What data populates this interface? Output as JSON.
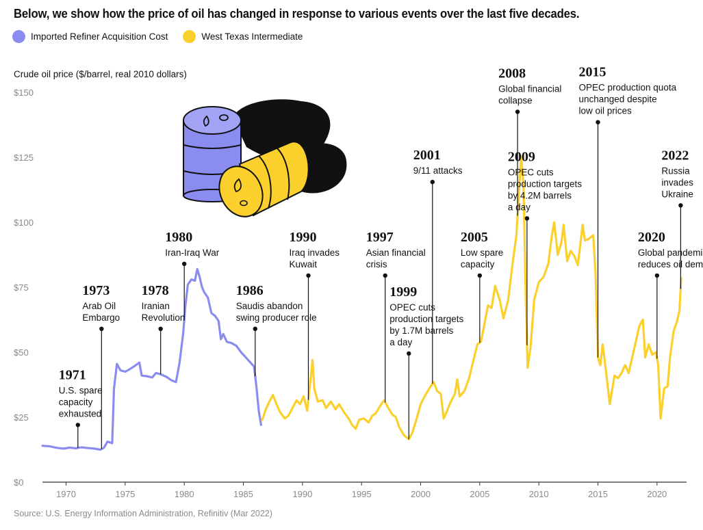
{
  "header": {
    "title": "Below, we show how the price of oil has changed in response to various events over the last five decades.",
    "y_axis_label": "Crude oil price ($/barrel, real 2010 dollars)",
    "source": "Source: U.S. Energy Information Administration, Refinitiv (Mar 2022)"
  },
  "legend": [
    {
      "name": "Imported Refiner Acquisition Cost",
      "color": "#8b8cf0"
    },
    {
      "name": "West Texas Intermediate",
      "color": "#fcd02c"
    }
  ],
  "colors": {
    "ric": "#8b8cf0",
    "wti": "#fcd02c",
    "axis": "#333333",
    "event_line": "#111111",
    "barrel_shadow": "#111111"
  },
  "illustration": {
    "description_icons": [
      "oil-barrel-purple-icon",
      "oil-barrel-yellow-icon"
    ]
  },
  "chart_data": {
    "type": "line",
    "title": "Below, we show how the price of oil has changed in response to various events over the last five decades.",
    "ylabel": "Crude oil price ($/barrel, real 2010 dollars)",
    "xlim": [
      1968,
      2022.5
    ],
    "ylim": [
      0,
      150
    ],
    "x_ticks": [
      1970,
      1975,
      1980,
      1985,
      1990,
      1995,
      2000,
      2005,
      2010,
      2015,
      2020
    ],
    "y_ticks": [
      0,
      25,
      50,
      75,
      100,
      125,
      150
    ],
    "y_tick_labels": [
      "$0",
      "$25",
      "$50",
      "$75",
      "$100",
      "$125",
      "$150"
    ],
    "grid": false,
    "legend_position": "top-left",
    "series": [
      {
        "name": "Imported Refiner Acquisition Cost",
        "color": "#8b8cf0",
        "points": [
          [
            1968.0,
            14.0
          ],
          [
            1968.6,
            13.8
          ],
          [
            1969.2,
            13.2
          ],
          [
            1969.8,
            12.9
          ],
          [
            1970.3,
            13.3
          ],
          [
            1970.8,
            13.0
          ],
          [
            1971.3,
            13.4
          ],
          [
            1971.9,
            13.1
          ],
          [
            1972.4,
            12.9
          ],
          [
            1972.9,
            12.5
          ],
          [
            1973.2,
            13.2
          ],
          [
            1973.5,
            15.6
          ],
          [
            1973.9,
            15.0
          ],
          [
            1974.05,
            36.0
          ],
          [
            1974.3,
            45.5
          ],
          [
            1974.6,
            43.0
          ],
          [
            1975.0,
            42.5
          ],
          [
            1975.4,
            43.5
          ],
          [
            1975.9,
            45.0
          ],
          [
            1976.2,
            46.0
          ],
          [
            1976.4,
            41.0
          ],
          [
            1976.8,
            40.8
          ],
          [
            1977.3,
            40.3
          ],
          [
            1977.6,
            42.0
          ],
          [
            1978.0,
            41.5
          ],
          [
            1978.5,
            40.5
          ],
          [
            1978.9,
            39.2
          ],
          [
            1979.3,
            38.5
          ],
          [
            1979.6,
            46.0
          ],
          [
            1979.9,
            57.0
          ],
          [
            1980.1,
            68.0
          ],
          [
            1980.3,
            76.0
          ],
          [
            1980.6,
            78.0
          ],
          [
            1980.9,
            77.5
          ],
          [
            1981.1,
            82.0
          ],
          [
            1981.3,
            79.0
          ],
          [
            1981.5,
            75.0
          ],
          [
            1981.7,
            73.0
          ],
          [
            1982.0,
            71.0
          ],
          [
            1982.3,
            65.0
          ],
          [
            1982.6,
            64.0
          ],
          [
            1982.9,
            62.0
          ],
          [
            1983.1,
            55.0
          ],
          [
            1983.3,
            57.0
          ],
          [
            1983.6,
            54.0
          ],
          [
            1984.0,
            53.5
          ],
          [
            1984.4,
            52.5
          ],
          [
            1984.8,
            50.0
          ],
          [
            1985.2,
            48.0
          ],
          [
            1985.6,
            46.0
          ],
          [
            1985.9,
            44.5
          ],
          [
            1986.1,
            37.0
          ],
          [
            1986.3,
            27.5
          ],
          [
            1986.5,
            22.0
          ]
        ]
      },
      {
        "name": "West Texas Intermediate",
        "color": "#fcd02c",
        "points": [
          [
            1986.6,
            24.0
          ],
          [
            1986.9,
            28.0
          ],
          [
            1987.2,
            31.0
          ],
          [
            1987.5,
            33.5
          ],
          [
            1987.8,
            30.0
          ],
          [
            1988.1,
            27.0
          ],
          [
            1988.5,
            24.5
          ],
          [
            1988.8,
            25.5
          ],
          [
            1989.1,
            28.0
          ],
          [
            1989.5,
            31.5
          ],
          [
            1989.8,
            30.0
          ],
          [
            1990.1,
            33.0
          ],
          [
            1990.4,
            27.5
          ],
          [
            1990.7,
            40.0
          ],
          [
            1990.85,
            47.0
          ],
          [
            1991.0,
            36.0
          ],
          [
            1991.3,
            31.0
          ],
          [
            1991.7,
            31.5
          ],
          [
            1992.0,
            28.5
          ],
          [
            1992.4,
            31.0
          ],
          [
            1992.8,
            28.0
          ],
          [
            1993.1,
            30.0
          ],
          [
            1993.5,
            27.0
          ],
          [
            1993.9,
            24.5
          ],
          [
            1994.2,
            22.0
          ],
          [
            1994.5,
            20.5
          ],
          [
            1994.8,
            24.0
          ],
          [
            1995.2,
            24.5
          ],
          [
            1995.6,
            23.0
          ],
          [
            1995.9,
            25.5
          ],
          [
            1996.2,
            26.5
          ],
          [
            1996.6,
            29.5
          ],
          [
            1996.9,
            31.5
          ],
          [
            1997.2,
            29.0
          ],
          [
            1997.6,
            26.0
          ],
          [
            1997.9,
            25.0
          ],
          [
            1998.2,
            21.0
          ],
          [
            1998.6,
            18.0
          ],
          [
            1999.0,
            16.5
          ],
          [
            1999.3,
            19.0
          ],
          [
            1999.7,
            25.0
          ],
          [
            2000.0,
            30.0
          ],
          [
            2000.4,
            33.5
          ],
          [
            2000.8,
            36.5
          ],
          [
            2001.1,
            38.5
          ],
          [
            2001.4,
            35.0
          ],
          [
            2001.7,
            34.0
          ],
          [
            2001.95,
            24.5
          ],
          [
            2002.2,
            27.0
          ],
          [
            2002.5,
            30.5
          ],
          [
            2002.9,
            34.0
          ],
          [
            2003.1,
            39.5
          ],
          [
            2003.3,
            33.0
          ],
          [
            2003.7,
            35.0
          ],
          [
            2004.1,
            40.0
          ],
          [
            2004.5,
            47.5
          ],
          [
            2004.8,
            53.0
          ],
          [
            2005.1,
            54.0
          ],
          [
            2005.4,
            61.0
          ],
          [
            2005.7,
            68.0
          ],
          [
            2006.0,
            67.0
          ],
          [
            2006.3,
            75.5
          ],
          [
            2006.7,
            70.0
          ],
          [
            2007.0,
            63.0
          ],
          [
            2007.4,
            70.0
          ],
          [
            2007.8,
            85.0
          ],
          [
            2008.1,
            95.0
          ],
          [
            2008.3,
            110.0
          ],
          [
            2008.5,
            125.5
          ],
          [
            2008.7,
            115.0
          ],
          [
            2008.9,
            70.0
          ],
          [
            2009.05,
            44.0
          ],
          [
            2009.3,
            52.0
          ],
          [
            2009.6,
            70.0
          ],
          [
            2010.0,
            77.0
          ],
          [
            2010.4,
            79.0
          ],
          [
            2010.8,
            84.0
          ],
          [
            2011.1,
            95.0
          ],
          [
            2011.3,
            100.0
          ],
          [
            2011.6,
            87.5
          ],
          [
            2011.9,
            92.0
          ],
          [
            2012.1,
            99.0
          ],
          [
            2012.4,
            85.0
          ],
          [
            2012.7,
            89.0
          ],
          [
            2013.0,
            87.0
          ],
          [
            2013.3,
            83.5
          ],
          [
            2013.7,
            99.0
          ],
          [
            2013.9,
            93.0
          ],
          [
            2014.2,
            93.5
          ],
          [
            2014.6,
            95.0
          ],
          [
            2014.8,
            80.0
          ],
          [
            2015.0,
            48.0
          ],
          [
            2015.2,
            45.0
          ],
          [
            2015.4,
            53.0
          ],
          [
            2015.7,
            42.0
          ],
          [
            2016.0,
            30.0
          ],
          [
            2016.4,
            41.0
          ],
          [
            2016.7,
            40.0
          ],
          [
            2017.0,
            42.0
          ],
          [
            2017.3,
            45.0
          ],
          [
            2017.6,
            42.0
          ],
          [
            2017.9,
            48.0
          ],
          [
            2018.2,
            54.0
          ],
          [
            2018.5,
            60.0
          ],
          [
            2018.8,
            62.5
          ],
          [
            2019.0,
            48.0
          ],
          [
            2019.3,
            53.0
          ],
          [
            2019.6,
            49.0
          ],
          [
            2019.9,
            50.0
          ],
          [
            2020.1,
            45.0
          ],
          [
            2020.3,
            24.5
          ],
          [
            2020.6,
            36.0
          ],
          [
            2020.9,
            37.0
          ],
          [
            2021.1,
            48.0
          ],
          [
            2021.4,
            58.0
          ],
          [
            2021.7,
            62.0
          ],
          [
            2021.9,
            66.0
          ],
          [
            2022.05,
            78.5
          ]
        ]
      }
    ],
    "events": [
      {
        "year": "1971",
        "desc": [
          "U.S. spare",
          "capacity",
          "exhausted"
        ],
        "x": 1971,
        "y": 22.0,
        "label_above": true
      },
      {
        "year": "1973",
        "desc": [
          "Arab Oil",
          "Embargo"
        ],
        "x": 1973,
        "y": 59.0,
        "label_above": true
      },
      {
        "year": "1978",
        "desc": [
          "Iranian",
          "Revolution"
        ],
        "x": 1978,
        "y": 59.0,
        "label_above": true
      },
      {
        "year": "1980",
        "desc": [
          "Iran-Iraq War"
        ],
        "x": 1980,
        "y": 84.0,
        "label_above": true
      },
      {
        "year": "1986",
        "desc": [
          "Saudis abandon",
          "swing producer role"
        ],
        "x": 1986,
        "y": 59.0,
        "label_above": true
      },
      {
        "year": "1990",
        "desc": [
          "Iraq invades",
          "Kuwait"
        ],
        "x": 1990.5,
        "y": 79.5,
        "label_above": true
      },
      {
        "year": "1997",
        "desc": [
          "Asian financial",
          "crisis"
        ],
        "x": 1997,
        "y": 79.5,
        "label_above": true
      },
      {
        "year": "1999",
        "desc": [
          "OPEC cuts",
          "production targets",
          "by 1.7M barrels",
          "a day"
        ],
        "x": 1999,
        "y": 49.5,
        "label_above": true
      },
      {
        "year": "2001",
        "desc": [
          "9/11 attacks"
        ],
        "x": 2001,
        "y": 115.5,
        "label_above": true
      },
      {
        "year": "2005",
        "desc": [
          "Low spare",
          "capacity"
        ],
        "x": 2005,
        "y": 79.5,
        "label_above": true
      },
      {
        "year": "2008",
        "desc": [
          "Global financial",
          "collapse"
        ],
        "x": 2008.2,
        "y": 142.5,
        "label_above": true
      },
      {
        "year": "2009",
        "desc": [
          "OPEC cuts",
          "production targets",
          "by 4.2M barrels",
          "a day"
        ],
        "x": 2009,
        "y": 101.5,
        "label_above": true
      },
      {
        "year": "2015",
        "desc": [
          "OPEC production quota",
          "unchanged despite",
          "low oil prices"
        ],
        "x": 2015,
        "y": 138.5,
        "label_above": true
      },
      {
        "year": "2020",
        "desc": [
          "Global pandemic",
          "reduces oil demand"
        ],
        "x": 2020,
        "y": 79.5,
        "label_above": true
      },
      {
        "year": "2022",
        "desc": [
          "Russia",
          "invades",
          "Ukraine"
        ],
        "x": 2022,
        "y": 106.5,
        "label_above": true
      }
    ]
  }
}
